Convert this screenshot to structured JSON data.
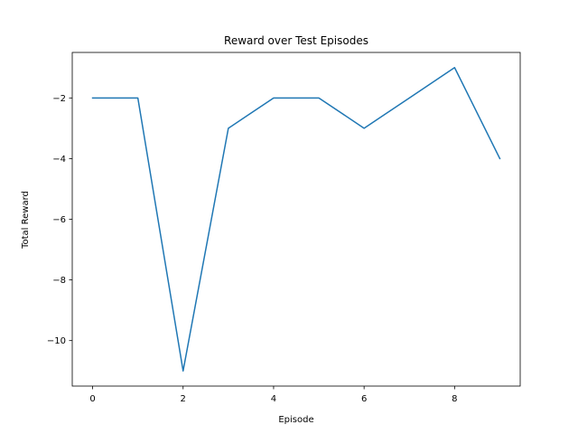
{
  "chart_data": {
    "type": "line",
    "title": "Reward over Test Episodes",
    "xlabel": "Episode",
    "ylabel": "Total Reward",
    "xlim": [
      -0.45,
      9.45
    ],
    "ylim": [
      -11.5,
      -0.5
    ],
    "xticks": [
      0,
      2,
      4,
      6,
      8
    ],
    "yticks": [
      -10,
      -8,
      -6,
      -4,
      -2
    ],
    "grid": false,
    "legend": "none",
    "series": [
      {
        "color": "#1f77b4",
        "x": [
          0,
          1,
          2,
          3,
          4,
          5,
          6,
          7,
          8,
          9
        ],
        "values": [
          -2,
          -2,
          -11,
          -3,
          -2,
          -2,
          -3,
          -2,
          -1,
          -4
        ]
      }
    ]
  }
}
